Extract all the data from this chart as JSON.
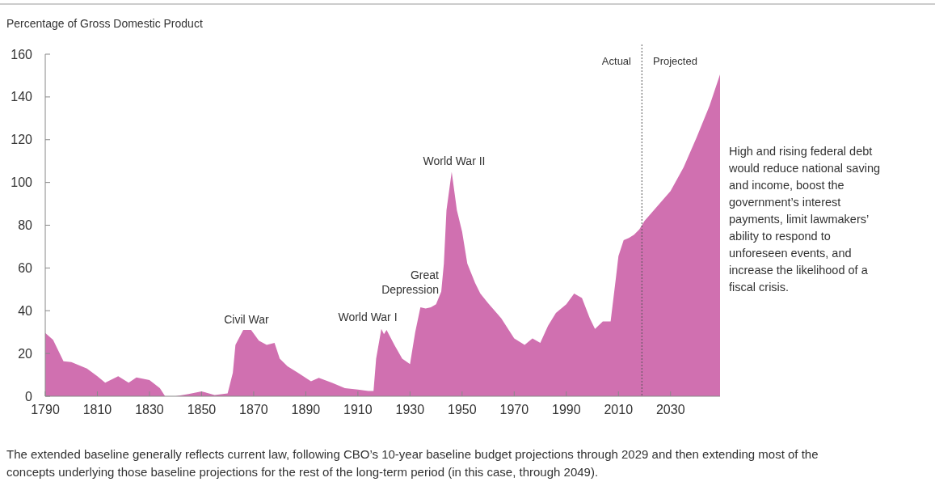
{
  "chart_data": {
    "type": "area",
    "ylabel": "Percentage of Gross Domestic Product",
    "x": [
      1790,
      1793,
      1797,
      1800,
      1803,
      1806,
      1810,
      1813,
      1818,
      1822,
      1825,
      1830,
      1834,
      1836,
      1840,
      1845,
      1850,
      1855,
      1860,
      1862,
      1863,
      1866,
      1869,
      1872,
      1875,
      1878,
      1880,
      1883,
      1887,
      1892,
      1895,
      1900,
      1905,
      1910,
      1914,
      1916,
      1917,
      1919,
      1920,
      1921,
      1924,
      1927,
      1930,
      1932,
      1934,
      1936,
      1938,
      1940,
      1942,
      1943,
      1944,
      1946,
      1948,
      1950,
      1952,
      1955,
      1957,
      1960,
      1965,
      1970,
      1974,
      1977,
      1980,
      1983,
      1986,
      1990,
      1993,
      1996,
      1999,
      2001,
      2004,
      2007,
      2009,
      2010,
      2012,
      2014,
      2016,
      2018,
      2020,
      2025,
      2030,
      2035,
      2040,
      2045,
      2049
    ],
    "series": [
      {
        "color": "#d070b0",
        "values": [
          29.6,
          26.4,
          16.4,
          16,
          14.5,
          13,
          9.4,
          6.3,
          9.4,
          6.3,
          8.8,
          7.6,
          3.8,
          0,
          0,
          1,
          2.3,
          0.6,
          1.3,
          11,
          24,
          31,
          31,
          26,
          24,
          25,
          17.6,
          14,
          11,
          7,
          8.6,
          6.3,
          3.8,
          3.1,
          2.5,
          2.5,
          17.6,
          31.5,
          29,
          31,
          24,
          17.6,
          15,
          30,
          41.6,
          41,
          41.6,
          43,
          49,
          62,
          87,
          105,
          87,
          77,
          62,
          53,
          48,
          43.5,
          36.5,
          27,
          24,
          27,
          25,
          33,
          39,
          43,
          48,
          46,
          36.5,
          31.5,
          35,
          35,
          55,
          65.5,
          73,
          74,
          75.6,
          78,
          82,
          89,
          96,
          107,
          121,
          136,
          150.5
        ]
      }
    ],
    "xlim": [
      1790,
      2049
    ],
    "ylim": [
      0,
      160
    ],
    "xticks": [
      1790,
      1810,
      1830,
      1850,
      1870,
      1890,
      1910,
      1930,
      1950,
      1970,
      1990,
      2010,
      2030
    ],
    "yticks": [
      0,
      20,
      40,
      60,
      80,
      100,
      120,
      140,
      160
    ],
    "grid": false,
    "ref_lines": [
      {
        "axis": "x",
        "value": 2019,
        "color": "#555555",
        "line_style": "dotted"
      }
    ],
    "annotations": [
      "Civil War",
      "World War I",
      "Great Depression",
      "World War II",
      "Actual",
      "Projected",
      "High and rising federal debt would reduce national saving and income, boost the government’s interest payments, limit lawmakers’ ability to respond to unforeseen events, and increase the likelihood of a fiscal crisis.",
      "The extended baseline generally reflects current law, following CBO’s 10-year baseline budget projections through 2029 and then extending most of the concepts underlying those baseline projections for the rest of the long-term period (in this case, through 2049)."
    ]
  }
}
